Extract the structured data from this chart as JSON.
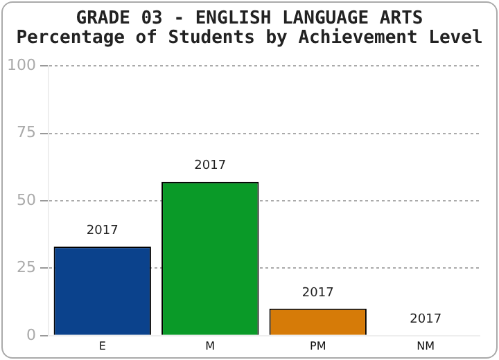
{
  "chart_data": {
    "type": "bar",
    "title": "GRADE 03 - ENGLISH LANGUAGE ARTS",
    "subtitle": "Percentage of Students by Achievement Level",
    "categories": [
      "E",
      "M",
      "PM",
      "NM"
    ],
    "series": [
      {
        "name": "2017",
        "colors": [
          "#0b428c",
          "#0a9a28",
          "#d67b08",
          "#d67b08"
        ],
        "values": [
          33,
          57,
          10,
          0
        ]
      }
    ],
    "ylim": [
      0,
      100
    ],
    "yticks": [
      0,
      25,
      50,
      75,
      100
    ],
    "grid": "y",
    "legend": false
  }
}
